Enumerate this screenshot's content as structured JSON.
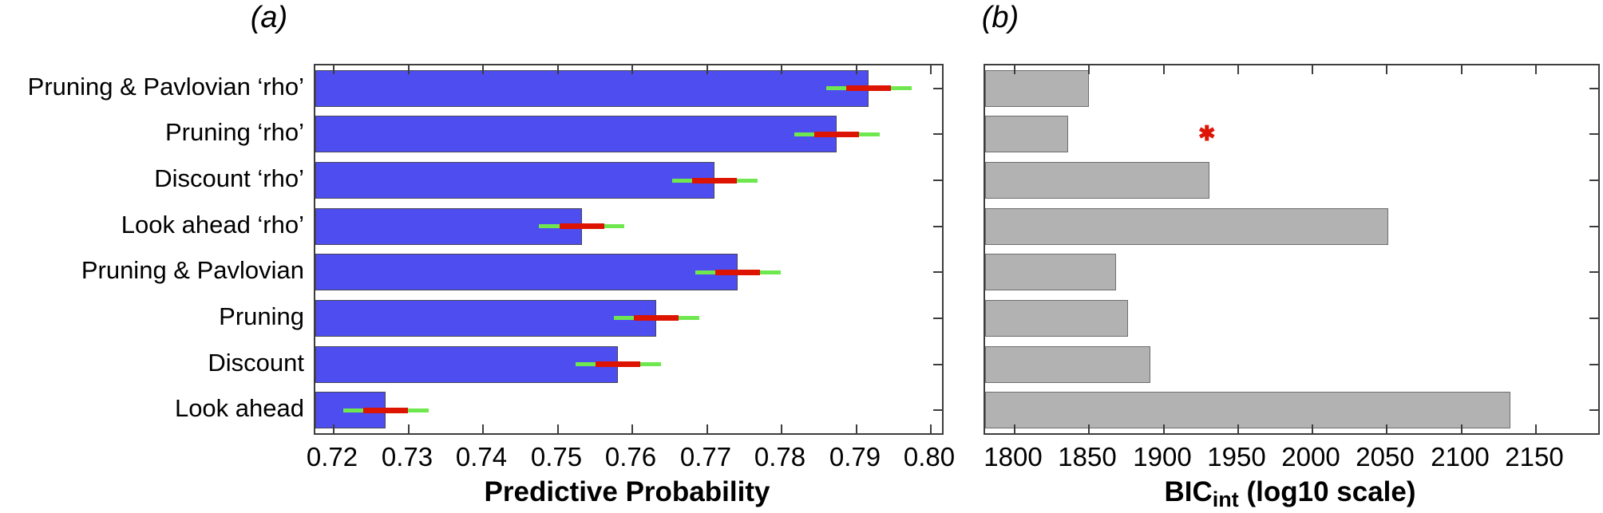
{
  "figure": {
    "background": "#ffffff",
    "axis_color": "#3d3d3d"
  },
  "chart_data": [
    {
      "type": "bar",
      "orientation": "horizontal",
      "panel_tag": "(a)",
      "title": "",
      "xlabel": "Predictive Probability",
      "xlabel_parts": {
        "main": "Predictive Probability",
        "sub": "",
        "rest": ""
      },
      "ylabel": "",
      "grid": false,
      "legend": null,
      "categories": [
        "Pruning & Pavlovian ‘rho’",
        "Pruning ‘rho’",
        "Discount ‘rho’",
        "Look ahead ‘rho’",
        "Pruning & Pavlovian",
        "Pruning",
        "Discount",
        "Look ahead"
      ],
      "show_category_labels": true,
      "values": [
        0.7917,
        0.7874,
        0.771,
        0.7532,
        0.7741,
        0.7632,
        0.7581,
        0.7269
      ],
      "error_outer": [
        [
          0.786,
          0.7974
        ],
        [
          0.7817,
          0.7931
        ],
        [
          0.7653,
          0.7767
        ],
        [
          0.7475,
          0.7589
        ],
        [
          0.7684,
          0.7798
        ],
        [
          0.7575,
          0.7689
        ],
        [
          0.7524,
          0.7638
        ],
        [
          0.7212,
          0.7326
        ]
      ],
      "error_inner": [
        [
          0.7887,
          0.7947
        ],
        [
          0.7844,
          0.7904
        ],
        [
          0.768,
          0.774
        ],
        [
          0.7502,
          0.7562
        ],
        [
          0.7711,
          0.7771
        ],
        [
          0.7602,
          0.7662
        ],
        [
          0.7551,
          0.7611
        ],
        [
          0.7239,
          0.7299
        ]
      ],
      "xlim": [
        0.7175,
        0.8015
      ],
      "xticks": [
        0.72,
        0.73,
        0.74,
        0.75,
        0.76,
        0.77,
        0.78,
        0.79,
        0.8
      ],
      "xtick_labels": [
        "0.72",
        "0.73",
        "0.74",
        "0.75",
        "0.76",
        "0.77",
        "0.78",
        "0.79",
        "0.80"
      ],
      "bar_color": "#4d4df0",
      "bar_border_color": "#46465a",
      "error_outer_color": "#6fe84f",
      "error_inner_color": "#dc1400"
    },
    {
      "type": "bar",
      "orientation": "horizontal",
      "panel_tag": "(b)",
      "title": "",
      "xlabel": "BIC_int (log10 scale)",
      "xlabel_parts": {
        "main": "BIC",
        "sub": "int",
        "rest": " (log10 scale)"
      },
      "ylabel": "",
      "grid": false,
      "legend": null,
      "categories": [
        "Pruning & Pavlovian ‘rho’",
        "Pruning ‘rho’",
        "Discount ‘rho’",
        "Look ahead ‘rho’",
        "Pruning & Pavlovian",
        "Pruning",
        "Discount",
        "Look ahead"
      ],
      "show_category_labels": false,
      "values": [
        1850,
        1836,
        1931,
        2051,
        1868,
        1876,
        1891,
        2133
      ],
      "xlim": [
        1780,
        2192
      ],
      "xticks": [
        1800,
        1850,
        1900,
        1950,
        2000,
        2050,
        2100,
        2150
      ],
      "xtick_labels": [
        "1800",
        "1850",
        "1900",
        "1950",
        "2000",
        "2050",
        "2100",
        "2150"
      ],
      "bar_color": "#b2b2b2",
      "bar_border_color": "#6e6e6e",
      "marker": {
        "x": 1929,
        "row_index": 1,
        "symbol": "✱",
        "color": "#dd1505"
      }
    }
  ]
}
